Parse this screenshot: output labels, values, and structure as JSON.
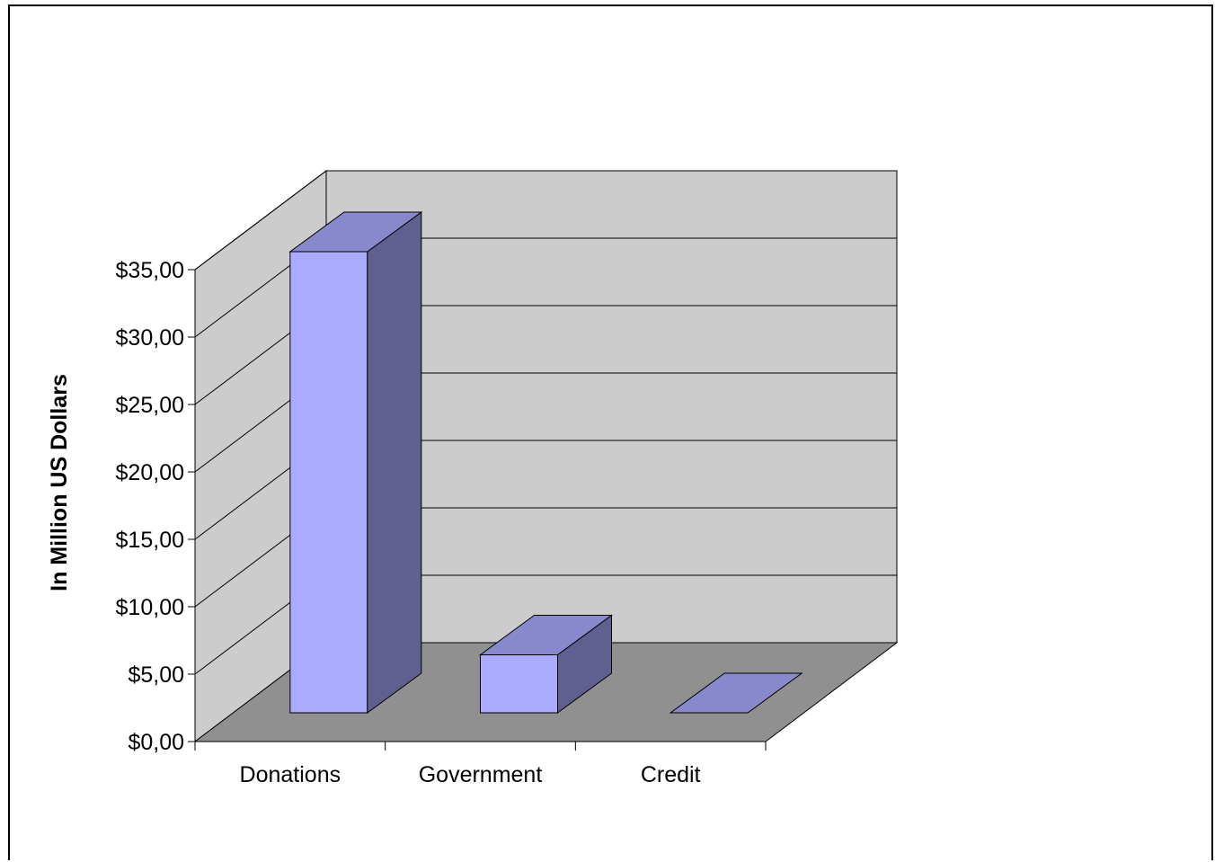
{
  "chart_data": {
    "type": "bar",
    "style": "3d-column",
    "categories": [
      "Donations",
      "Government",
      "Credit"
    ],
    "values": [
      34.2,
      4.3,
      0
    ],
    "ylabel": "In Million US Dollars",
    "xlabel": "",
    "ylim": [
      0,
      35
    ],
    "yticks": [
      "$0,00",
      "$5,00",
      "$10,00",
      "$15,00",
      "$20,00",
      "$25,00",
      "$30,00",
      "$35,00"
    ],
    "grid": true,
    "legend": "none",
    "colors": {
      "bar_front": "#aaaaff",
      "bar_top": "#8888cc",
      "bar_side": "#606090",
      "back_wall": "#cccccc",
      "floor": "#909090",
      "side_wall": "#cccccc",
      "lines": "#000000"
    }
  }
}
